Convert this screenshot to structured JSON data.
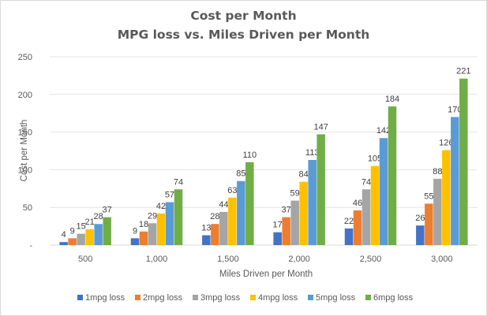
{
  "chart_data": {
    "type": "bar",
    "title": "Cost per Month",
    "subtitle": "MPG loss vs. Miles Driven per Month",
    "xlabel": "Miles Driven per Month",
    "ylabel": "Cost per Month",
    "categories": [
      "500",
      "1,000",
      "1,500",
      "2,000",
      "2,500",
      "3,000"
    ],
    "y_ticks": [
      "-",
      "50",
      "100",
      "150",
      "200",
      "250"
    ],
    "ylim": [
      0,
      250
    ],
    "grid": true,
    "legend_position": "bottom",
    "series": [
      {
        "name": "1mpg loss",
        "color": "#4472c4",
        "values": [
          4,
          9,
          13,
          17,
          22,
          26
        ]
      },
      {
        "name": "2mpg loss",
        "color": "#ed7d31",
        "values": [
          9,
          18,
          28,
          37,
          46,
          55
        ]
      },
      {
        "name": "3mpg loss",
        "color": "#a5a5a5",
        "values": [
          15,
          29,
          44,
          59,
          74,
          88
        ]
      },
      {
        "name": "4mpg loss",
        "color": "#ffc000",
        "values": [
          21,
          42,
          63,
          84,
          105,
          126
        ]
      },
      {
        "name": "5mpg loss",
        "color": "#5b9bd5",
        "values": [
          28,
          57,
          85,
          113,
          142,
          170
        ]
      },
      {
        "name": "6mpg loss",
        "color": "#70ad47",
        "values": [
          37,
          74,
          110,
          147,
          184,
          221
        ]
      }
    ]
  }
}
